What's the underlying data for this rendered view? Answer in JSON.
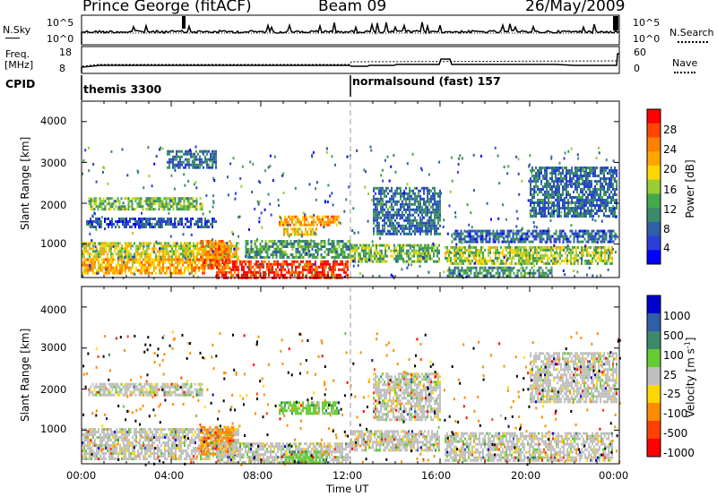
{
  "header": {
    "station": "Prince George (fitACF)",
    "beam": "Beam 09",
    "date": "26/May/2009"
  },
  "top_panels": {
    "nsky_label": "N.Sky",
    "nsky_ticks": [
      "10^5",
      "10^0"
    ],
    "nsearch_label": "N.Search",
    "nsearch_ticks": [
      "10^5",
      "10^0"
    ],
    "freq_label_1": "Freq.",
    "freq_label_2": "[MHz]",
    "freq_ticks": [
      "18",
      "8"
    ],
    "nave_label": "Nave",
    "nave_ticks": [
      "60",
      "0"
    ],
    "cpid_label": "CPID",
    "cpid_entries": [
      {
        "name": "themis 3300",
        "start_hour": 0
      },
      {
        "name": "normalsound (fast) 157",
        "start_hour": 12
      }
    ]
  },
  "x_axis": {
    "label": "Time UT",
    "ticks": [
      "00:00",
      "04:00",
      "08:00",
      "12:00",
      "16:00",
      "20:00",
      "00:00"
    ]
  },
  "chart_data": [
    {
      "type": "heatmap",
      "name": "power",
      "ylabel": "Slant Range [km]",
      "ylim": [
        180,
        4500
      ],
      "yticks": [
        "4000",
        "3000",
        "2000",
        "1000"
      ],
      "xlim_hours": [
        0,
        24
      ],
      "colorbar": {
        "label": "Power [dB]",
        "ticks": [
          "28",
          "24",
          "20",
          "16",
          "12",
          "8",
          "4"
        ],
        "range": [
          0,
          32
        ],
        "colors": [
          "#0000ff",
          "#2a3fd8",
          "#2f5fa6",
          "#3d8a6a",
          "#44a84c",
          "#9acd32",
          "#ffd700",
          "#ffa500",
          "#ff7f00",
          "#ff4500",
          "#ff0000"
        ]
      },
      "regions": [
        {
          "t": [
            0.3,
            5.4
          ],
          "r": [
            1850,
            2150
          ],
          "level": 14
        },
        {
          "t": [
            0.2,
            6.0
          ],
          "r": [
            1450,
            1650
          ],
          "level": 6
        },
        {
          "t": [
            0.0,
            7.0
          ],
          "r": [
            650,
            1050
          ],
          "level": 18
        },
        {
          "t": [
            0.0,
            5.5
          ],
          "r": [
            300,
            650
          ],
          "level": 22
        },
        {
          "t": [
            5.3,
            6.6
          ],
          "r": [
            400,
            1100
          ],
          "level": 25
        },
        {
          "t": [
            6.0,
            11.9
          ],
          "r": [
            200,
            600
          ],
          "level": 29
        },
        {
          "t": [
            8.8,
            11.5
          ],
          "r": [
            1450,
            1700
          ],
          "level": 22
        },
        {
          "t": [
            9.0,
            10.5
          ],
          "r": [
            1250,
            1400
          ],
          "level": 20
        },
        {
          "t": [
            7.3,
            12.0
          ],
          "r": [
            700,
            1100
          ],
          "level": 12
        },
        {
          "t": [
            12.0,
            16.0
          ],
          "r": [
            600,
            1000
          ],
          "level": 14
        },
        {
          "t": [
            13.0,
            16.0
          ],
          "r": [
            1250,
            2400
          ],
          "level": 8
        },
        {
          "t": [
            16.2,
            23.7
          ],
          "r": [
            500,
            950
          ],
          "level": 16
        },
        {
          "t": [
            16.5,
            23.8
          ],
          "r": [
            1050,
            1350
          ],
          "level": 7
        },
        {
          "t": [
            20.0,
            23.9
          ],
          "r": [
            1700,
            2900
          ],
          "level": 8
        },
        {
          "t": [
            16.3,
            21.0
          ],
          "r": [
            250,
            450
          ],
          "level": 11
        },
        {
          "t": [
            3.8,
            6.0
          ],
          "r": [
            2900,
            3300
          ],
          "level": 8
        }
      ]
    },
    {
      "type": "heatmap",
      "name": "velocity",
      "ylabel": "Slant Range [km]",
      "ylim": [
        180,
        4500
      ],
      "yticks": [
        "4000",
        "3000",
        "2000",
        "1000"
      ],
      "xlim_hours": [
        0,
        24
      ],
      "colorbar": {
        "label": "Velocity [m s^-1]",
        "ticks": [
          "1000",
          "500",
          "100",
          "25",
          "-25",
          "-100",
          "-500",
          "-1000"
        ],
        "colors": [
          "#0000cc",
          "#2f5fa6",
          "#3d8a6a",
          "#66cc33",
          "#c0c0c0",
          "#ffd700",
          "#ff8c00",
          "#ff4000",
          "#ff0000"
        ]
      },
      "regions": [
        {
          "t": [
            0.3,
            5.4
          ],
          "r": [
            1850,
            2150
          ],
          "level": 4
        },
        {
          "t": [
            0.0,
            7.0
          ],
          "r": [
            300,
            1050
          ],
          "level": 4
        },
        {
          "t": [
            5.3,
            6.8
          ],
          "r": [
            400,
            1100
          ],
          "level": 6
        },
        {
          "t": [
            8.8,
            11.5
          ],
          "r": [
            1400,
            1700
          ],
          "level": 3
        },
        {
          "t": [
            6.0,
            12.0
          ],
          "r": [
            200,
            700
          ],
          "level": 4
        },
        {
          "t": [
            12.0,
            16.0
          ],
          "r": [
            500,
            1000
          ],
          "level": 4
        },
        {
          "t": [
            13.0,
            16.0
          ],
          "r": [
            1250,
            2400
          ],
          "level": 4
        },
        {
          "t": [
            16.2,
            23.7
          ],
          "r": [
            250,
            950
          ],
          "level": 4
        },
        {
          "t": [
            20.0,
            23.9
          ],
          "r": [
            1700,
            2900
          ],
          "level": 4
        },
        {
          "t": [
            9.0,
            11.0
          ],
          "r": [
            200,
            500
          ],
          "level": 3
        }
      ]
    }
  ]
}
